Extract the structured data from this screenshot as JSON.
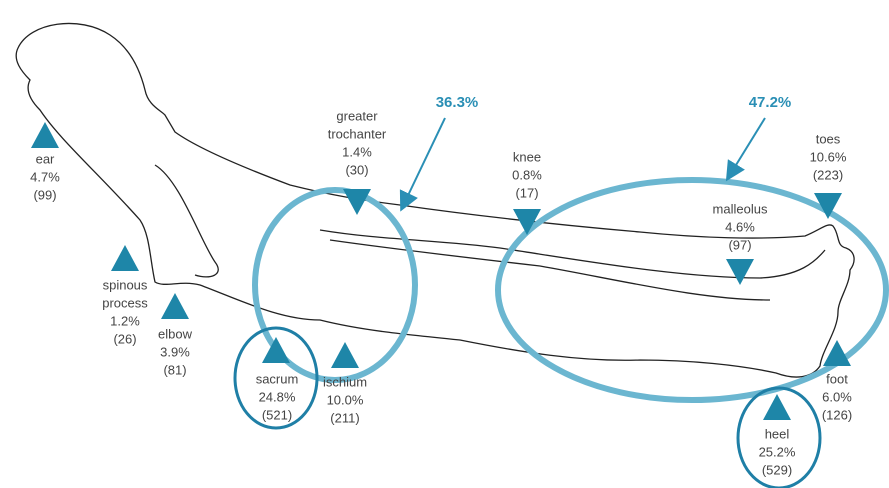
{
  "groups": [
    {
      "label": "36.3%"
    },
    {
      "label": "47.2%"
    }
  ],
  "sites": [
    {
      "label": [
        "ear"
      ],
      "percent": "4.7%",
      "count": "(99)"
    },
    {
      "label": [
        "spinous",
        "process"
      ],
      "percent": "1.2%",
      "count": "(26)"
    },
    {
      "label": [
        "elbow"
      ],
      "percent": "3.9%",
      "count": "(81)"
    },
    {
      "label": [
        "sacrum"
      ],
      "percent": "24.8%",
      "count": "(521)"
    },
    {
      "label": [
        "ischium"
      ],
      "percent": "10.0%",
      "count": "(211)"
    },
    {
      "label": [
        "greater",
        "trochanter"
      ],
      "percent": "1.4%",
      "count": "(30)"
    },
    {
      "label": [
        "knee"
      ],
      "percent": "0.8%",
      "count": "(17)"
    },
    {
      "label": [
        "malleolus"
      ],
      "percent": "4.6%",
      "count": "(97)"
    },
    {
      "label": [
        "toes"
      ],
      "percent": "10.6%",
      "count": "(223)"
    },
    {
      "label": [
        "foot"
      ],
      "percent": "6.0%",
      "count": "(126)"
    },
    {
      "label": [
        "heel"
      ],
      "percent": "25.2%",
      "count": "(529)"
    }
  ]
}
